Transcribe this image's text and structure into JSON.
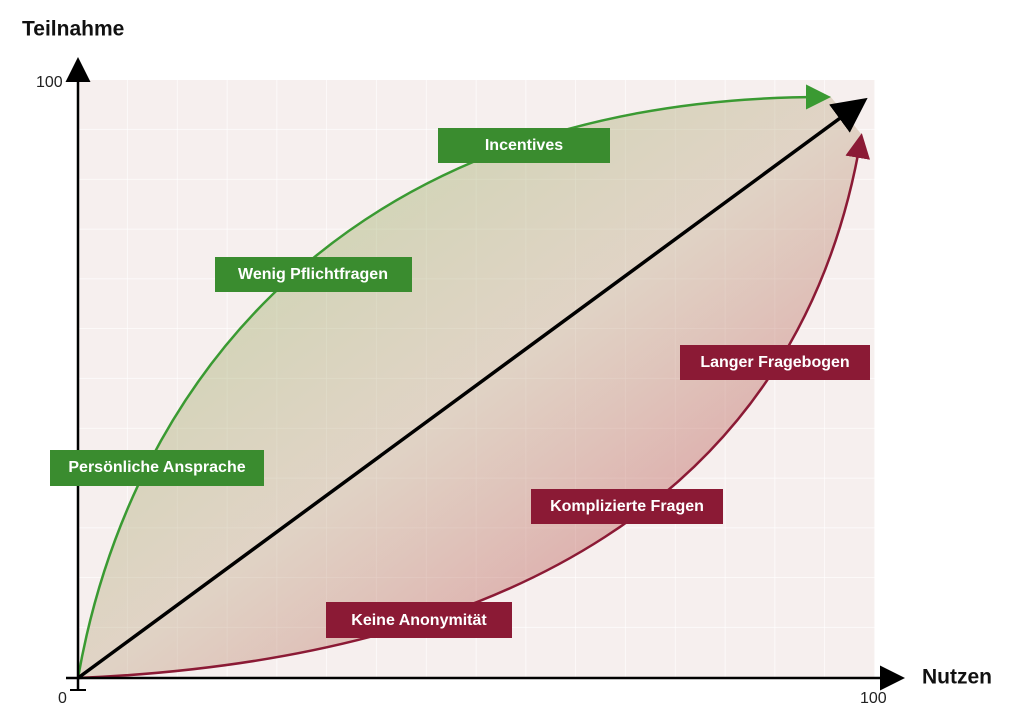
{
  "axes": {
    "y_label": "Teilnahme",
    "y_max": "100",
    "x_label": "Nutzen",
    "x_max": "100",
    "origin": "0"
  },
  "positive_factors": [
    "Incentives",
    "Wenig Pflichtfragen",
    "Persönliche Ansprache"
  ],
  "negative_factors": [
    "Langer Fragebogen",
    "Komplizierte Fragen",
    "Keine Anonymität"
  ]
}
